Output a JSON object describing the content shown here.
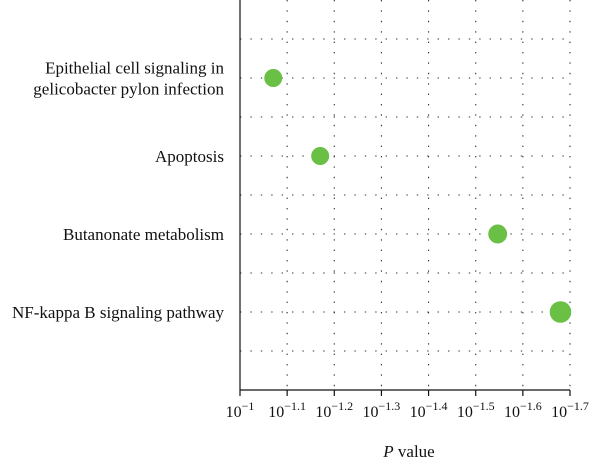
{
  "chart_data": {
    "type": "scatter",
    "title": "",
    "xlabel": {
      "italic": "P",
      "rest": " value"
    },
    "ylabel": "",
    "x_scale": "log",
    "xlim": [
      0.1,
      0.01995
    ],
    "x_ticks": [
      {
        "base": "10",
        "exp": "−1"
      },
      {
        "base": "10",
        "exp": "−1.1"
      },
      {
        "base": "10",
        "exp": "−1.2"
      },
      {
        "base": "10",
        "exp": "−1.3"
      },
      {
        "base": "10",
        "exp": "−1.4"
      },
      {
        "base": "10",
        "exp": "−1.5"
      },
      {
        "base": "10",
        "exp": "−1.6"
      },
      {
        "base": "10",
        "exp": "−1.7"
      }
    ],
    "grid": true,
    "marker_color": "#6abf45",
    "categories": [
      {
        "lines": [
          "Epithelial cell signaling in",
          "gelicobacter pylon infection"
        ]
      },
      {
        "lines": [
          "Apoptosis"
        ]
      },
      {
        "lines": [
          "Butanonate metabolism"
        ]
      },
      {
        "lines": [
          "NF-kappa B signaling pathway"
        ]
      }
    ],
    "points": [
      {
        "category": "Epithelial cell signaling in gelicobacter pylon infection",
        "p_value": 0.085,
        "size": 1.0
      },
      {
        "category": "Apoptosis",
        "p_value": 0.0676,
        "size": 1.0
      },
      {
        "category": "Butanonate metabolism",
        "p_value": 0.0284,
        "size": 1.05
      },
      {
        "category": "NF-kappa B signaling pathway",
        "p_value": 0.0209,
        "size": 1.2
      }
    ]
  }
}
